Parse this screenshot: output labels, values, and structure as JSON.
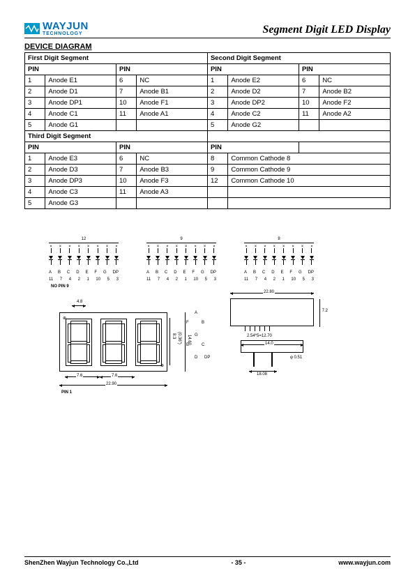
{
  "header": {
    "logo_main": "WAYJUN",
    "logo_sub": "TECHNOLOGY",
    "doc_title": "Segment Digit LED Display"
  },
  "section_title": "DEVICE DIAGRAM",
  "table": {
    "hdr_first": "First Digit Segment",
    "hdr_second": "Second Digit Segment",
    "hdr_third": "Third Digit Segment",
    "pin_label": "PIN",
    "rows1": [
      [
        "1",
        "Anode E1",
        "6",
        "NC",
        "1",
        "Anode E2",
        "6",
        "NC"
      ],
      [
        "2",
        "Anode D1",
        "7",
        "Anode B1",
        "2",
        "Anode D2",
        "7",
        "Anode B2"
      ],
      [
        "3",
        "Anode DP1",
        "10",
        "Anode F1",
        "3",
        "Anode DP2",
        "10",
        "Anode F2"
      ],
      [
        "4",
        "Anode C1",
        "11",
        "Anode A1",
        "4",
        "Anode C2",
        "11",
        "Anode A2"
      ],
      [
        "5",
        "Anode G1",
        "",
        "",
        "5",
        "Anode G2",
        "",
        ""
      ]
    ],
    "rows2": [
      [
        "1",
        "Anode E3",
        "6",
        "NC",
        "8",
        "Common Cathode 8"
      ],
      [
        "2",
        "Anode D3",
        "7",
        "Anode B3",
        "9",
        "Common Cathode 9"
      ],
      [
        "3",
        "Anode DP3",
        "10",
        "Anode F3",
        "12",
        "Common Cathode 10"
      ],
      [
        "4",
        "Anode C3",
        "11",
        "Anode A3",
        "",
        ""
      ],
      [
        "5",
        "Anode G3",
        "",
        "",
        "",
        ""
      ]
    ]
  },
  "schematic": {
    "top_labels": [
      "12",
      "9",
      "8"
    ],
    "seg_letters": [
      "A",
      "B",
      "C",
      "D",
      "E",
      "F",
      "G",
      "DP"
    ],
    "bottom_nums": [
      "11",
      "7",
      "4",
      "2",
      "1",
      "10",
      "5",
      "3"
    ],
    "no_pin_note": "NO PIN 9"
  },
  "mech": {
    "dim_48": "4.8",
    "dim_76_a": "7.6",
    "dim_76_b": "7.6",
    "dim_2290": "22.90",
    "dim_83": "8.3",
    "dim_036": "(0.36\")",
    "dim_1460": "14.60",
    "pin1_label": "PIN 1",
    "dim_2280": "22.80",
    "dim_254": "2.54*5=12.70",
    "dim_72": "7.2",
    "dim_140": "14.0",
    "dim_phi": "φ 0.51",
    "dim_1808": "18.08",
    "seg_labels": {
      "a": "A",
      "b": "B",
      "c": "C",
      "d": "D",
      "e": "E",
      "f": "F",
      "g": "G",
      "dp": "DP"
    }
  },
  "footer": {
    "company": "ShenZhen Wayjun Technology Co.,Ltd",
    "page": "- 35 -",
    "url": "www.wayjun.com"
  }
}
